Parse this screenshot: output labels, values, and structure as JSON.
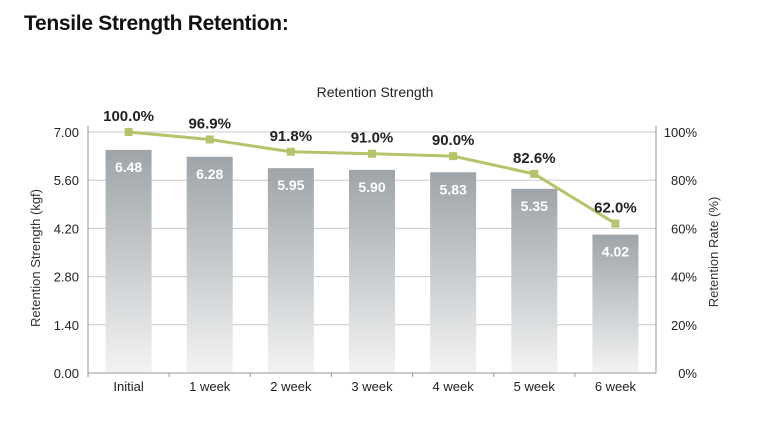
{
  "page": {
    "heading": "Tensile Strength Retention:"
  },
  "colors": {
    "bar_top": "#9ea4a8",
    "bar_bottom": "#f2f3f4",
    "line": "#b5c46a",
    "grid": "#c8c8c8",
    "bar_label": "#ffffff",
    "text": "#222222"
  },
  "chart_data": {
    "type": "bar",
    "title": "Retention Strength",
    "categories": [
      "Initial",
      "1 week",
      "2 week",
      "3 week",
      "4 week",
      "5 week",
      "6 week"
    ],
    "series": [
      {
        "type": "bar",
        "axis": "left",
        "values": [
          6.48,
          6.28,
          5.95,
          5.9,
          5.83,
          5.35,
          4.02
        ],
        "labels": [
          "6.48",
          "6.28",
          "5.95",
          "5.90",
          "5.83",
          "5.35",
          "4.02"
        ]
      },
      {
        "type": "line",
        "axis": "right",
        "values": [
          100.0,
          96.9,
          91.8,
          91.0,
          90.0,
          82.6,
          62.0
        ],
        "labels": [
          "100.0%",
          "96.9%",
          "91.8%",
          "91.0%",
          "90.0%",
          "82.6%",
          "62.0%"
        ]
      }
    ],
    "ylabel": "Retention Strength (kgf)",
    "ylim": [
      0,
      7
    ],
    "yticks": [
      "0.00",
      "1.40",
      "2.80",
      "4.20",
      "5.60",
      "7.00"
    ],
    "y2label": "Retention Rate (%)",
    "y2lim": [
      0,
      100
    ],
    "y2ticks": [
      "0%",
      "20%",
      "40%",
      "60%",
      "80%",
      "100%"
    ],
    "grid": "horizontal"
  }
}
